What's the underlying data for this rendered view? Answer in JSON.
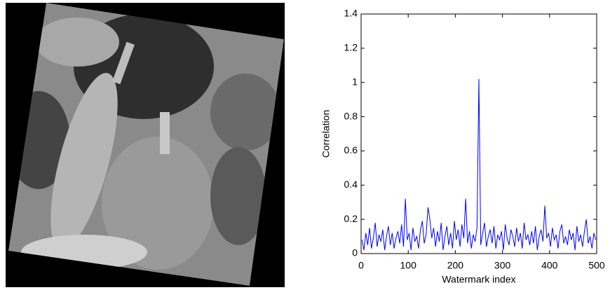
{
  "chart_data": {
    "type": "line",
    "xlabel": "Watermark index",
    "ylabel": "Correlation",
    "xlim": [
      0,
      500
    ],
    "ylim": [
      0,
      1.4
    ],
    "xticks": [
      0,
      100,
      200,
      300,
      400,
      500
    ],
    "yticks": [
      0,
      0.2,
      0.4,
      0.6,
      0.8,
      1,
      1.2,
      1.4
    ],
    "grid": false,
    "series": [
      {
        "name": "Correlation",
        "color": "#0000ff",
        "x": [
          2,
          6,
          10,
          14,
          18,
          22,
          26,
          30,
          34,
          38,
          42,
          46,
          50,
          54,
          58,
          62,
          66,
          70,
          74,
          78,
          82,
          86,
          90,
          94,
          98,
          102,
          106,
          110,
          114,
          118,
          122,
          126,
          130,
          134,
          138,
          142,
          146,
          150,
          154,
          158,
          162,
          166,
          170,
          174,
          178,
          182,
          186,
          190,
          194,
          198,
          202,
          206,
          210,
          214,
          218,
          222,
          226,
          230,
          234,
          238,
          242,
          246,
          250,
          254,
          258,
          262,
          266,
          270,
          274,
          278,
          282,
          286,
          290,
          294,
          298,
          302,
          306,
          310,
          314,
          318,
          322,
          326,
          330,
          334,
          338,
          342,
          346,
          350,
          354,
          358,
          362,
          366,
          370,
          374,
          378,
          382,
          386,
          390,
          394,
          398,
          402,
          406,
          410,
          414,
          418,
          422,
          426,
          430,
          434,
          438,
          442,
          446,
          450,
          454,
          458,
          462,
          466,
          470,
          474,
          478,
          482,
          486,
          490,
          494,
          498
        ],
        "values": [
          0.08,
          0.02,
          0.12,
          0.05,
          0.15,
          0.03,
          0.09,
          0.18,
          0.04,
          0.11,
          0.07,
          0.14,
          0.02,
          0.1,
          0.16,
          0.05,
          0.12,
          0.03,
          0.09,
          0.13,
          0.06,
          0.17,
          0.04,
          0.32,
          0.08,
          0.12,
          0.02,
          0.15,
          0.07,
          0.1,
          0.03,
          0.14,
          0.19,
          0.06,
          0.11,
          0.27,
          0.2,
          0.09,
          0.15,
          0.04,
          0.13,
          0.07,
          0.18,
          0.02,
          0.1,
          0.16,
          0.05,
          0.12,
          0.03,
          0.19,
          0.08,
          0.14,
          0.04,
          0.17,
          0.09,
          0.32,
          0.06,
          0.13,
          0.03,
          0.11,
          0.07,
          0.15,
          1.02,
          0.05,
          0.12,
          0.18,
          0.04,
          0.1,
          0.14,
          0.06,
          0.16,
          0.03,
          0.11,
          0.08,
          0.13,
          0.02,
          0.17,
          0.09,
          0.05,
          0.14,
          0.1,
          0.04,
          0.15,
          0.07,
          0.12,
          0.03,
          0.18,
          0.08,
          0.11,
          0.05,
          0.13,
          0.06,
          0.16,
          0.02,
          0.1,
          0.14,
          0.07,
          0.28,
          0.09,
          0.12,
          0.04,
          0.15,
          0.08,
          0.11,
          0.03,
          0.13,
          0.17,
          0.06,
          0.1,
          0.05,
          0.14,
          0.08,
          0.12,
          0.02,
          0.16,
          0.07,
          0.11,
          0.04,
          0.13,
          0.2,
          0.06,
          0.1,
          0.03,
          0.12,
          0.08
        ]
      }
    ]
  }
}
